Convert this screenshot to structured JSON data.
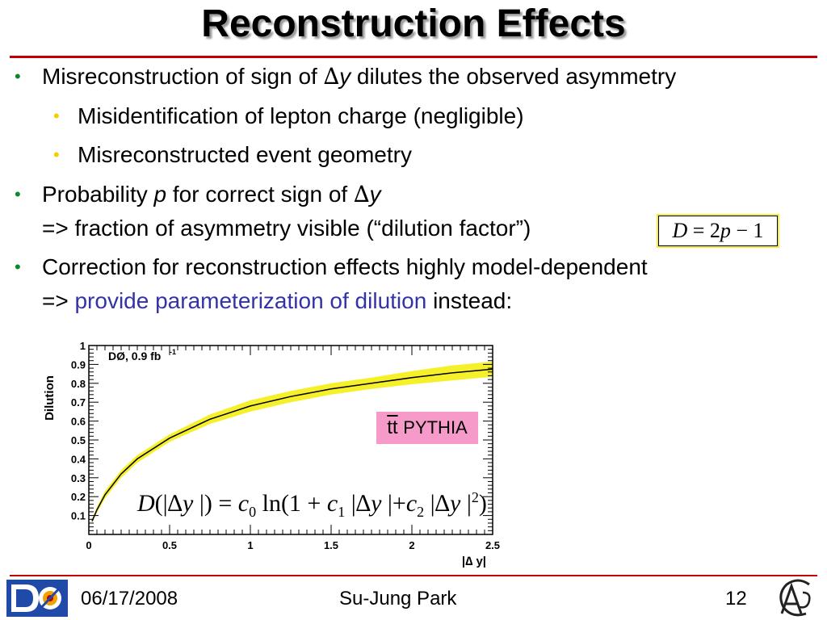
{
  "slide": {
    "title": "Reconstruction Effects",
    "bullets": {
      "b1": {
        "pre": "Misreconstruction of sign of ",
        "symbol": "∆",
        "var": "y",
        "post": " dilutes the observed asymmetry"
      },
      "b1a": "Misidentification of lepton charge (negligible)",
      "b1b": "Misreconstructed event geometry",
      "b2": {
        "pre": "Probability ",
        "var_p": "p",
        "mid": " for correct sign of ",
        "symbol": "∆",
        "var": "y",
        "line2": "=> fraction of asymmetry visible (“dilution factor”)"
      },
      "b3": {
        "line1": "Correction for reconstruction effects highly model-dependent",
        "line2_pre": "=> ",
        "line2_link": "provide parameterization of dilution",
        "line2_post": " instead:"
      }
    },
    "equation_box": {
      "D": "D",
      "eq": " = 2",
      "p": "p",
      "rest": " − 1"
    },
    "pythia_label": {
      "tt": "tt",
      "brand": "PYTHIA"
    },
    "formula": {
      "lhs": "D",
      "open": "(|∆",
      "y": "y",
      "close": " |) = ",
      "c0": "c",
      "c0sub": "0",
      "ln": " ln(1 + ",
      "c1": "c",
      "c1sub": "1",
      "mid1": " |∆",
      "y2": "y",
      "mid2": " |+",
      "c2": "c",
      "c2sub": "2",
      "mid3": " |∆",
      "y3": "y",
      "mid4": " |",
      "sup": "2",
      "end": ")"
    }
  },
  "footer": {
    "date": "06/17/2008",
    "author": "Su-Jung Park",
    "page": "12"
  },
  "colors": {
    "accent_rule": "#c00000",
    "bullet_green": "#0a8a2a",
    "bullet_yellow": "#f2d000",
    "link_blue": "#3333a8",
    "band_yellow": "#f6f02a",
    "pythia_bg": "#f59ac9"
  },
  "chart_data": {
    "type": "line",
    "title": "DØ, 0.9 fb",
    "title_sup": "-1",
    "xlabel": "|∆ y|",
    "ylabel": "Dilution",
    "xlim": [
      0,
      2.5
    ],
    "ylim": [
      0,
      1
    ],
    "xticks": [
      "0",
      "0.5",
      "1",
      "1.5",
      "2",
      "2.5"
    ],
    "yticks": [
      "0.1",
      "0.2",
      "0.3",
      "0.4",
      "0.5",
      "0.6",
      "0.7",
      "0.8",
      "0.9",
      "1"
    ],
    "series": [
      {
        "x": [
          0.02,
          0.05,
          0.1,
          0.2,
          0.3,
          0.5,
          0.75,
          1.0,
          1.25,
          1.5,
          1.75,
          2.0,
          2.25,
          2.5
        ],
        "values": [
          0.07,
          0.13,
          0.21,
          0.32,
          0.4,
          0.51,
          0.61,
          0.68,
          0.73,
          0.77,
          0.8,
          0.83,
          0.855,
          0.875
        ],
        "band_lower": [
          0.06,
          0.115,
          0.19,
          0.3,
          0.38,
          0.49,
          0.585,
          0.65,
          0.7,
          0.74,
          0.77,
          0.795,
          0.815,
          0.835
        ],
        "band_upper": [
          0.08,
          0.145,
          0.23,
          0.34,
          0.42,
          0.53,
          0.635,
          0.71,
          0.76,
          0.8,
          0.83,
          0.865,
          0.895,
          0.915
        ]
      }
    ]
  }
}
